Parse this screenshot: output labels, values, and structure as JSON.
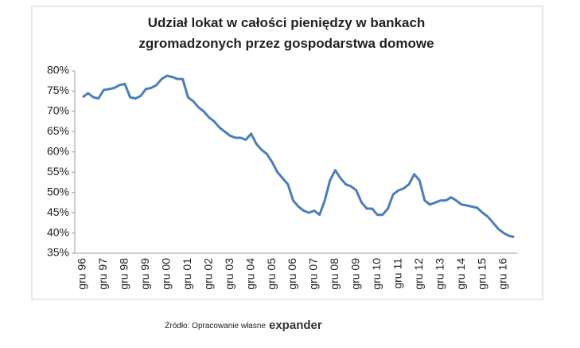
{
  "chart_data": {
    "type": "line",
    "title": [
      "Udział lokat w całości pieniędzy w bankach",
      "zgromadzonych przez gospodarstwa domowe"
    ],
    "categories": [
      "gru 96",
      null,
      null,
      null,
      "gru 97",
      null,
      null,
      null,
      "gru 98",
      null,
      null,
      null,
      "gru 99",
      null,
      null,
      null,
      "gru 00",
      null,
      null,
      null,
      "gru 01",
      null,
      null,
      null,
      "gru 02",
      null,
      null,
      null,
      "gru 03",
      null,
      null,
      null,
      "gru 04",
      null,
      null,
      null,
      "gru 05",
      null,
      null,
      null,
      "gru 06",
      null,
      null,
      null,
      "gru 07",
      null,
      null,
      null,
      "gru 08",
      null,
      null,
      null,
      "gru 09",
      null,
      null,
      null,
      "gru 10",
      null,
      null,
      null,
      "gru 11",
      null,
      null,
      null,
      "gru 12",
      null,
      null,
      null,
      "gru 13",
      null,
      null,
      null,
      "gru 14",
      null,
      null,
      null,
      "gru 15",
      null,
      null,
      null,
      "gru 16",
      null,
      null
    ],
    "series": [
      {
        "color": "#4a7ebb",
        "values": [
          73.5,
          74.5,
          73.5,
          73.2,
          75.3,
          75.5,
          75.8,
          76.5,
          76.8,
          73.5,
          73.2,
          73.8,
          75.5,
          75.8,
          76.5,
          78,
          78.8,
          78.5,
          78,
          78,
          73.5,
          72.5,
          71,
          70,
          68.5,
          67.5,
          66,
          65,
          64,
          63.5,
          63.5,
          63,
          64.5,
          62,
          60.5,
          59.5,
          57.5,
          55,
          53.5,
          52,
          48,
          46.5,
          45.5,
          45,
          45.5,
          44.5,
          48,
          53,
          55.5,
          53.5,
          52,
          51.5,
          50.5,
          47.5,
          46,
          46,
          44.5,
          44.5,
          46,
          49.5,
          50.5,
          51,
          52,
          54.5,
          53,
          48,
          47,
          47.5,
          48,
          48,
          48.8,
          48,
          47,
          46.8,
          46.5,
          46.2,
          45,
          44,
          42.5,
          41,
          40,
          39.3,
          39
        ]
      }
    ],
    "ylim": [
      35,
      80
    ],
    "yticks": [
      {
        "value": 35,
        "label": "35%"
      },
      {
        "value": 40,
        "label": "40%"
      },
      {
        "value": 45,
        "label": "45%"
      },
      {
        "value": 50,
        "label": "50%"
      },
      {
        "value": 55,
        "label": "55%"
      },
      {
        "value": 60,
        "label": "60%"
      },
      {
        "value": 65,
        "label": "65%"
      },
      {
        "value": 70,
        "label": "70%"
      },
      {
        "value": 75,
        "label": "75%"
      },
      {
        "value": 80,
        "label": "80%"
      }
    ],
    "source": "Źródło: Opracowanie własne",
    "logo": "expander"
  }
}
